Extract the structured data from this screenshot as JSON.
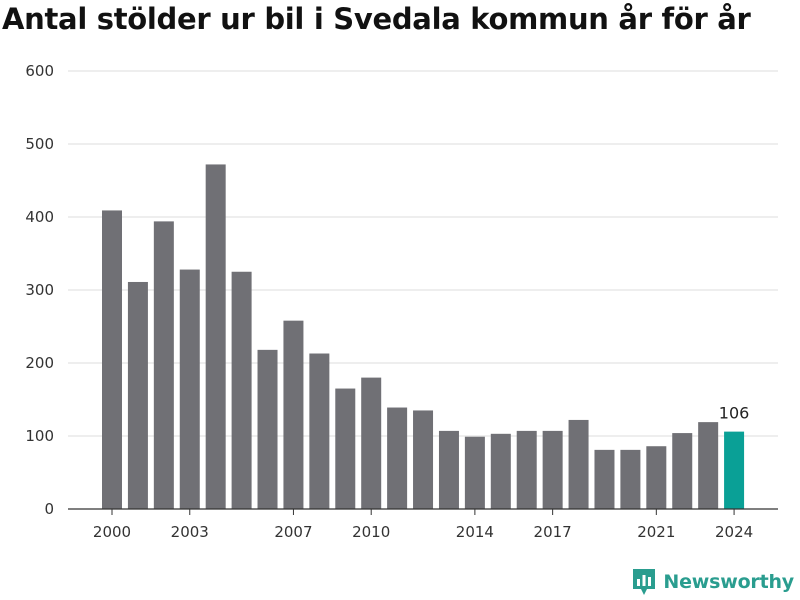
{
  "title": "Antal stölder ur bil i Svedala kommun år för år",
  "brand": {
    "name": "Newsworthy",
    "icon": "newsworthy-logo-icon"
  },
  "colors": {
    "bar": "#707075",
    "highlight": "#0aa096",
    "grid": "#dddddd",
    "brand": "#2a9d8f"
  },
  "chart_data": {
    "type": "bar",
    "title": "Antal stölder ur bil i Svedala kommun år för år",
    "xlabel": "",
    "ylabel": "",
    "ylim": [
      0,
      600
    ],
    "yticks": [
      0,
      100,
      200,
      300,
      400,
      500,
      600
    ],
    "xticks": [
      "2000",
      "2003",
      "2007",
      "2010",
      "2014",
      "2017",
      "2021",
      "2024"
    ],
    "grid": "horizontal",
    "categories": [
      "2000",
      "2001",
      "2002",
      "2003",
      "2004",
      "2005",
      "2006",
      "2007",
      "2008",
      "2009",
      "2010",
      "2011",
      "2012",
      "2013",
      "2014",
      "2015",
      "2016",
      "2017",
      "2018",
      "2019",
      "2020",
      "2021",
      "2022",
      "2023",
      "2024"
    ],
    "values": [
      409,
      311,
      394,
      328,
      472,
      325,
      218,
      258,
      213,
      165,
      180,
      139,
      135,
      107,
      99,
      103,
      107,
      107,
      122,
      81,
      81,
      86,
      104,
      119,
      106
    ],
    "highlight": {
      "category": "2024",
      "label": "106"
    }
  }
}
